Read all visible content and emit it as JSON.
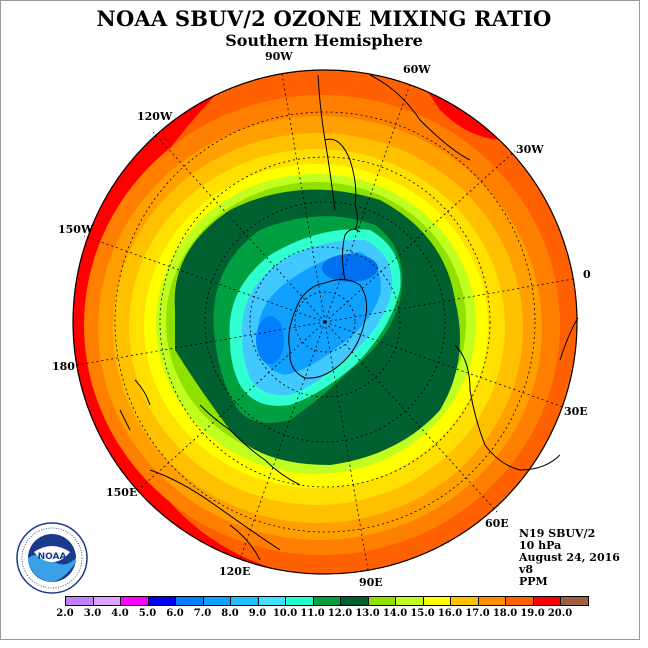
{
  "title": "NOAA SBUV/2 OZONE MIXING RATIO",
  "subtitle": "Southern Hemisphere",
  "longitude_labels": {
    "w90": "90W",
    "w60": "60W",
    "w30": "30W",
    "e0": "0",
    "e30": "30E",
    "e60": "60E",
    "e90": "90E",
    "e120": "120E",
    "e150": "150E",
    "d180": "180",
    "w150": "150W",
    "w120": "120W"
  },
  "info": {
    "instrument": "N19 SBUV/2",
    "pressure_level": "10 hPa",
    "date": "August 24, 2016",
    "version": "v8",
    "units": "PPM"
  },
  "logo": {
    "text": "NOAA",
    "ring_text": "NATIONAL OCEANIC AND ATMOSPHERIC ADMINISTRATION · U.S. DEPARTMENT OF COMMERCE"
  },
  "colorbar": {
    "ticks": [
      "2.0",
      "3.0",
      "4.0",
      "5.0",
      "6.0",
      "7.0",
      "8.0",
      "9.0",
      "10.0",
      "11.0",
      "12.0",
      "13.0",
      "14.0",
      "15.0",
      "16.0",
      "17.0",
      "18.0",
      "19.0",
      "20.0"
    ],
    "colors": [
      "#c080ff",
      "#e0a0ff",
      "#ff00ff",
      "#0000ff",
      "#0080ff",
      "#10a0ff",
      "#20c0ff",
      "#40e0ff",
      "#20ffd0",
      "#00a040",
      "#006030",
      "#90e000",
      "#c0ff20",
      "#ffff00",
      "#ffc000",
      "#ff9000",
      "#ff6000",
      "#ff0000",
      "#a06040"
    ]
  }
}
